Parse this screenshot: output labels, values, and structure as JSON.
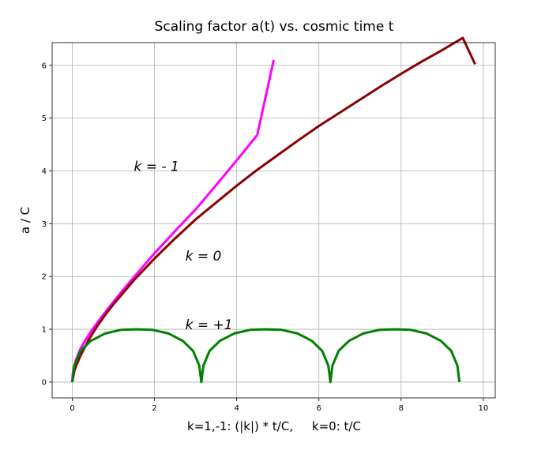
{
  "chart_data": {
    "type": "line",
    "title": "Scaling factor a(t) vs. cosmic time t",
    "xlabel": "k=1,-1: (|k|) * t/C,     k=0: t/C",
    "ylabel": "a / C",
    "xlim": [
      -0.49,
      10.29
    ],
    "ylim": [
      -0.3,
      6.43
    ],
    "xticks": [
      0,
      2,
      4,
      6,
      8,
      10
    ],
    "yticks": [
      0,
      1,
      2,
      3,
      4,
      5,
      6
    ],
    "grid": true,
    "series": [
      {
        "color": "#ff00ff",
        "x": [
          0.0,
          0.01,
          0.04,
          0.08,
          0.13,
          0.2,
          0.3,
          0.45,
          0.65,
          0.9,
          1.2,
          1.6,
          2.0,
          2.5,
          3.0,
          3.5,
          4.0,
          4.5,
          4.9
        ],
        "y": [
          0.0,
          0.14,
          0.28,
          0.4,
          0.5,
          0.63,
          0.77,
          0.95,
          1.17,
          1.42,
          1.71,
          2.08,
          2.44,
          2.86,
          3.27,
          3.73,
          4.2,
          4.68,
          6.1
        ]
      },
      {
        "color": "#8b0000",
        "x": [
          0.0,
          0.05,
          0.1,
          0.2,
          0.4,
          0.6,
          0.8,
          1.0,
          1.5,
          2.0,
          2.5,
          3.0,
          3.5,
          4.0,
          4.5,
          5.0,
          5.5,
          6.0,
          6.5,
          7.0,
          7.5,
          8.0,
          8.5,
          9.0,
          9.5,
          9.8
        ],
        "y": [
          0.0,
          0.21,
          0.32,
          0.5,
          0.8,
          1.05,
          1.27,
          1.47,
          1.93,
          2.34,
          2.72,
          3.08,
          3.4,
          3.72,
          4.02,
          4.3,
          4.58,
          4.85,
          5.1,
          5.35,
          5.6,
          5.84,
          6.07,
          6.29,
          6.52,
          6.02
        ]
      },
      {
        "color": "#008000",
        "x": [
          0.0,
          0.05,
          0.2,
          0.45,
          0.8,
          1.2,
          1.57,
          1.94,
          2.34,
          2.69,
          2.94,
          3.09,
          3.14,
          3.19,
          3.34,
          3.59,
          3.94,
          4.34,
          4.71,
          5.08,
          5.48,
          5.83,
          6.08,
          6.23,
          6.28,
          6.33,
          6.48,
          6.73,
          7.08,
          7.48,
          7.85,
          8.22,
          8.62,
          8.97,
          9.22,
          9.37,
          9.42
        ],
        "y": [
          0.0,
          0.31,
          0.59,
          0.78,
          0.92,
          0.99,
          1.0,
          0.99,
          0.92,
          0.78,
          0.59,
          0.31,
          0.0,
          0.31,
          0.59,
          0.78,
          0.92,
          0.99,
          1.0,
          0.99,
          0.92,
          0.78,
          0.59,
          0.31,
          0.0,
          0.31,
          0.59,
          0.78,
          0.92,
          0.99,
          1.0,
          0.99,
          0.92,
          0.78,
          0.59,
          0.31,
          0.0
        ]
      }
    ],
    "annotations": [
      {
        "text": "k = - 1",
        "x": 1.5,
        "y": 4.0
      },
      {
        "text": "k = 0",
        "x": 2.75,
        "y": 2.3
      },
      {
        "text": "k = +1",
        "x": 2.75,
        "y": 1.0
      }
    ]
  }
}
